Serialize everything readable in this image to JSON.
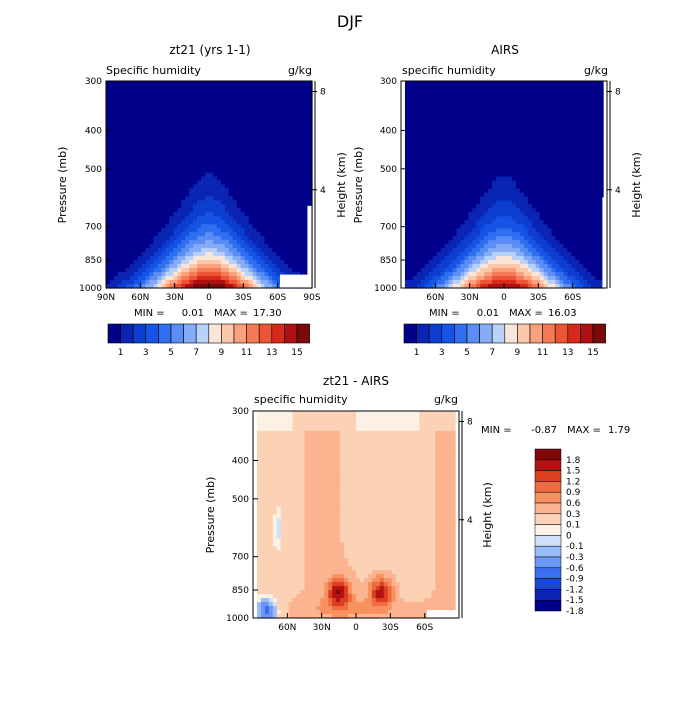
{
  "title": "DJF",
  "colors": {
    "abs_scale": [
      "#00008b",
      "#0a24b4",
      "#0d3ecf",
      "#1654e6",
      "#2f6ff0",
      "#5a8ef5",
      "#86acf7",
      "#b8d2fa",
      "#fae6d9",
      "#fcc6a8",
      "#fba07d",
      "#f67a55",
      "#ec5436",
      "#d72a1c",
      "#ad1010",
      "#7a0a0a"
    ],
    "diff_scale": [
      "#00008b",
      "#0a24b4",
      "#1a46d8",
      "#3a6eef",
      "#6a97f4",
      "#9bbdf7",
      "#cfe1fb",
      "#fdf0e4",
      "#fcd2b7",
      "#fcb38f",
      "#f7915f",
      "#ef6b40",
      "#dc3e22",
      "#b31212",
      "#800808"
    ]
  },
  "chart_data": [
    {
      "type": "heatmap",
      "title": "zt21 (yrs 1-1)",
      "subtitle_left": "Specific humidity",
      "subtitle_right": "g/kg",
      "ylabel": "Pressure (mb)",
      "ylabel_right": "Height (km)",
      "x_ticks": [
        "90N",
        "60N",
        "30N",
        "0",
        "30S",
        "60S",
        "90S"
      ],
      "y_ticks": [
        "300",
        "400",
        "500",
        "700",
        "850",
        "1000"
      ],
      "y_right_ticks": [
        "8",
        "4"
      ],
      "stats": {
        "min_label": "MIN =",
        "min": "0.01",
        "max_label": "MAX =",
        "max": "17.30"
      },
      "colorbar_labels": [
        "1",
        "3",
        "5",
        "7",
        "9",
        "11",
        "13",
        "15"
      ],
      "contour_levels": [
        1,
        2,
        3,
        4,
        5,
        6,
        7,
        8,
        9,
        10,
        11,
        12,
        13,
        14,
        15
      ],
      "peak_value": 17.3,
      "peak_lat": 0,
      "peak_pressure": 1000
    },
    {
      "type": "heatmap",
      "title": "AIRS",
      "subtitle_left": "specific humidity",
      "subtitle_right": "g/kg",
      "ylabel": "Pressure (mb)",
      "ylabel_right": "Height (km)",
      "x_ticks": [
        "60N",
        "30N",
        "0",
        "30S",
        "60S"
      ],
      "y_ticks": [
        "300",
        "400",
        "500",
        "700",
        "850",
        "1000"
      ],
      "y_right_ticks": [
        "8",
        "4"
      ],
      "stats": {
        "min_label": "MIN =",
        "min": "0.01",
        "max_label": "MAX =",
        "max": "16.03"
      },
      "colorbar_labels": [
        "1",
        "3",
        "5",
        "7",
        "9",
        "11",
        "13",
        "15"
      ],
      "contour_levels": [
        1,
        2,
        3,
        4,
        5,
        6,
        7,
        8,
        9,
        10,
        11,
        12,
        13,
        14,
        15
      ],
      "peak_value": 16.03,
      "peak_lat": 0,
      "peak_pressure": 1000
    },
    {
      "type": "heatmap",
      "title": "zt21 - AIRS",
      "subtitle_left": "specific humidity",
      "subtitle_right": "g/kg",
      "ylabel": "Pressure (mb)",
      "ylabel_right": "Height (km)",
      "x_ticks": [
        "60N",
        "30N",
        "0",
        "30S",
        "60S"
      ],
      "y_ticks": [
        "300",
        "400",
        "500",
        "700",
        "850",
        "1000"
      ],
      "y_right_ticks": [
        "8",
        "4"
      ],
      "stats": {
        "min_label": "MIN =",
        "min": "-0.87",
        "max_label": "MAX =",
        "max": "1.79"
      },
      "colorbar_labels": [
        "1.8",
        "1.5",
        "1.2",
        "0.9",
        "0.6",
        "0.3",
        "0.1",
        "0",
        "-0.1",
        "-0.3",
        "-0.6",
        "-0.9",
        "-1.2",
        "-1.5",
        "-1.8"
      ],
      "peak_value": 1.79,
      "peak_lat": 15,
      "peak_pressure": 850
    }
  ]
}
